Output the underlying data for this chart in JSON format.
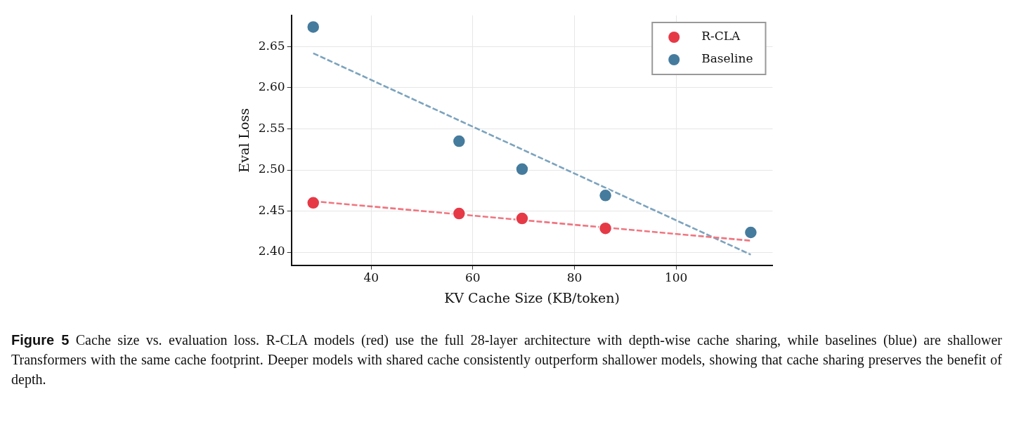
{
  "chart_data": {
    "type": "scatter",
    "xlabel": "KV Cache Size (KB/token)",
    "ylabel": "Eval Loss",
    "xlim": [
      24.3,
      119.0
    ],
    "ylim": [
      2.384,
      2.688
    ],
    "xticks": [
      40,
      60,
      80,
      100
    ],
    "yticks": [
      {
        "value": 2.4,
        "label": "2.40"
      },
      {
        "value": 2.45,
        "label": "2.45"
      },
      {
        "value": 2.5,
        "label": "2.50"
      },
      {
        "value": 2.55,
        "label": "2.55"
      },
      {
        "value": 2.6,
        "label": "2.60"
      },
      {
        "value": 2.65,
        "label": "2.65"
      }
    ],
    "grid": true,
    "legend": "top right",
    "marker": "circle",
    "series": [
      {
        "name": "R-CLA",
        "color": "#e63946",
        "x": [
          28.6,
          57.3,
          69.7,
          86.1
        ],
        "values": [
          2.46,
          2.447,
          2.441,
          2.429
        ]
      },
      {
        "name": "Baseline",
        "color": "#457b9d",
        "x": [
          28.6,
          57.3,
          69.7,
          86.1,
          114.7
        ],
        "values": [
          2.674,
          2.535,
          2.501,
          2.469,
          2.424
        ]
      },
      {
        "type": "line",
        "color": "#ef7680",
        "line_style": "dashed",
        "marker": "none",
        "x": [
          28.6,
          114.7
        ],
        "values": [
          2.462,
          2.414
        ]
      },
      {
        "type": "line",
        "color": "#7ca3be",
        "line_style": "dashed",
        "marker": "none",
        "x": [
          28.6,
          114.7
        ],
        "values": [
          2.642,
          2.397
        ]
      }
    ],
    "annotations": [
      "Figure 5",
      "Cache size vs. evaluation loss. R-CLA models (red) use the full 28-layer architecture with depth-wise cache sharing, while baselines (blue) are shallower Transformers with the same cache footprint. Deeper models with shared cache consistently outperform shallower models, showing that cache sharing preserves the benefit of depth."
    ]
  }
}
